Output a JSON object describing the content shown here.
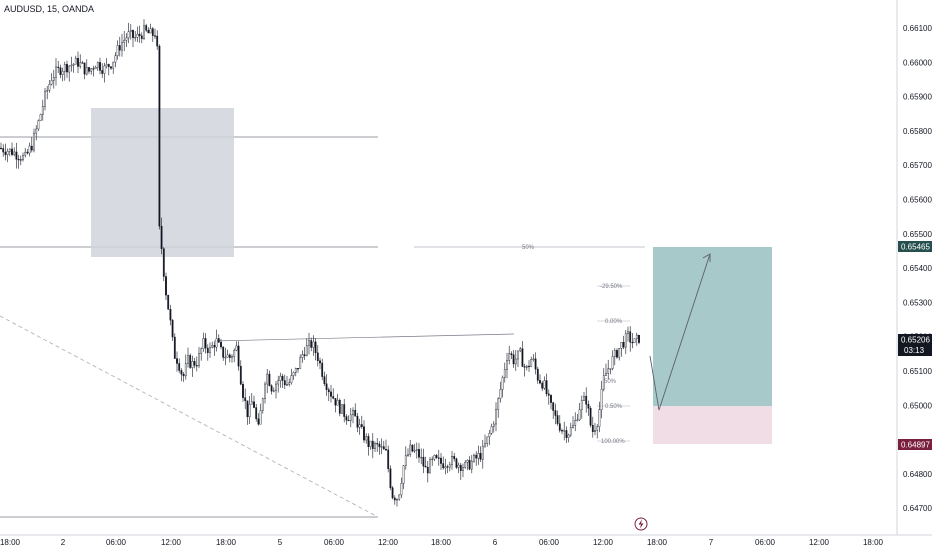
{
  "header": {
    "symbol": "AUDUSD, 15, OANDA"
  },
  "colors": {
    "candle": "#131722",
    "grid_line": "#131722",
    "gray_box": "#d1d4dc",
    "profit_zone": "#a7c9ca",
    "stop_zone": "#f1dde6",
    "entry_label_bg": "#26504f",
    "stop_label_bg": "#7a1f3d",
    "current_label_bg": "#131722",
    "fib_line": "#b2b5be",
    "dashed_line": "#b2b5be",
    "bolt": "#7a1f3d"
  },
  "price_badges": {
    "target": "0.65465",
    "current": "0.65206",
    "countdown": "03:13",
    "stop": "0.64897"
  },
  "annotations": {
    "midline": "50%",
    "fib_levels": [
      "-29.50%",
      "0.00%",
      "50%",
      "0.50%",
      "100.00%"
    ]
  },
  "icons": {
    "replay": "lightning-bolt-icon"
  },
  "chart_data": {
    "type": "candlestick",
    "title": "AUDUSD, 15, OANDA",
    "y_ticks": [
      "0.66100",
      "0.66000",
      "0.65900",
      "0.65800",
      "0.65700",
      "0.65600",
      "0.65500",
      "0.65400",
      "0.65300",
      "0.65200",
      "0.65100",
      "0.65000",
      "0.64800",
      "0.64700"
    ],
    "x_ticks": [
      "18:00",
      "2",
      "06:00",
      "12:00",
      "18:00",
      "5",
      "06:00",
      "12:00",
      "18:00",
      "6",
      "06:00",
      "12:00",
      "18:00",
      "7",
      "06:00",
      "12:00",
      "18:00"
    ],
    "ylim": [
      0.6466,
      0.6614
    ],
    "price_path": [
      [
        0,
        0.6575
      ],
      [
        12,
        0.6574
      ],
      [
        25,
        0.6572
      ],
      [
        32,
        0.6576
      ],
      [
        38,
        0.6582
      ],
      [
        45,
        0.659
      ],
      [
        52,
        0.6596
      ],
      [
        60,
        0.6598
      ],
      [
        68,
        0.6599
      ],
      [
        78,
        0.66
      ],
      [
        88,
        0.6597
      ],
      [
        96,
        0.66
      ],
      [
        104,
        0.6598
      ],
      [
        112,
        0.66
      ],
      [
        120,
        0.6605
      ],
      [
        128,
        0.6608
      ],
      [
        136,
        0.6607
      ],
      [
        144,
        0.6609
      ],
      [
        152,
        0.6608
      ],
      [
        157,
        0.6609
      ],
      [
        159,
        0.6552
      ],
      [
        162,
        0.6545
      ],
      [
        165,
        0.6535
      ],
      [
        170,
        0.6525
      ],
      [
        174,
        0.6515
      ],
      [
        178,
        0.6513
      ],
      [
        183,
        0.6508
      ],
      [
        188,
        0.6513
      ],
      [
        192,
        0.6512
      ],
      [
        198,
        0.6513
      ],
      [
        203,
        0.6518
      ],
      [
        210,
        0.6516
      ],
      [
        216,
        0.6519
      ],
      [
        222,
        0.6515
      ],
      [
        230,
        0.6514
      ],
      [
        237,
        0.6517
      ],
      [
        242,
        0.6505
      ],
      [
        248,
        0.6497
      ],
      [
        253,
        0.6502
      ],
      [
        258,
        0.6492
      ],
      [
        266,
        0.651
      ],
      [
        272,
        0.6505
      ],
      [
        280,
        0.6508
      ],
      [
        288,
        0.6506
      ],
      [
        296,
        0.651
      ],
      [
        304,
        0.6516
      ],
      [
        312,
        0.6518
      ],
      [
        318,
        0.6514
      ],
      [
        324,
        0.6508
      ],
      [
        330,
        0.6504
      ],
      [
        338,
        0.65
      ],
      [
        346,
        0.6497
      ],
      [
        354,
        0.6497
      ],
      [
        362,
        0.6492
      ],
      [
        370,
        0.6488
      ],
      [
        378,
        0.6488
      ],
      [
        386,
        0.6486
      ],
      [
        392,
        0.6474
      ],
      [
        398,
        0.6473
      ],
      [
        404,
        0.6483
      ],
      [
        410,
        0.6487
      ],
      [
        418,
        0.6486
      ],
      [
        426,
        0.6481
      ],
      [
        434,
        0.6484
      ],
      [
        442,
        0.6483
      ],
      [
        450,
        0.6484
      ],
      [
        458,
        0.6483
      ],
      [
        466,
        0.6482
      ],
      [
        474,
        0.6484
      ],
      [
        482,
        0.6486
      ],
      [
        490,
        0.6492
      ],
      [
        496,
        0.6498
      ],
      [
        502,
        0.6507
      ],
      [
        508,
        0.6516
      ],
      [
        514,
        0.6513
      ],
      [
        520,
        0.6515
      ],
      [
        526,
        0.651
      ],
      [
        532,
        0.6514
      ],
      [
        538,
        0.6508
      ],
      [
        544,
        0.6506
      ],
      [
        550,
        0.65
      ],
      [
        556,
        0.6496
      ],
      [
        562,
        0.6493
      ],
      [
        568,
        0.6492
      ],
      [
        574,
        0.6494
      ],
      [
        580,
        0.65
      ],
      [
        586,
        0.6502
      ],
      [
        592,
        0.6492
      ],
      [
        598,
        0.6496
      ],
      [
        604,
        0.6508
      ],
      [
        610,
        0.6512
      ],
      [
        616,
        0.6515
      ],
      [
        622,
        0.6518
      ],
      [
        628,
        0.652
      ],
      [
        634,
        0.6518
      ],
      [
        640,
        0.652
      ]
    ]
  }
}
